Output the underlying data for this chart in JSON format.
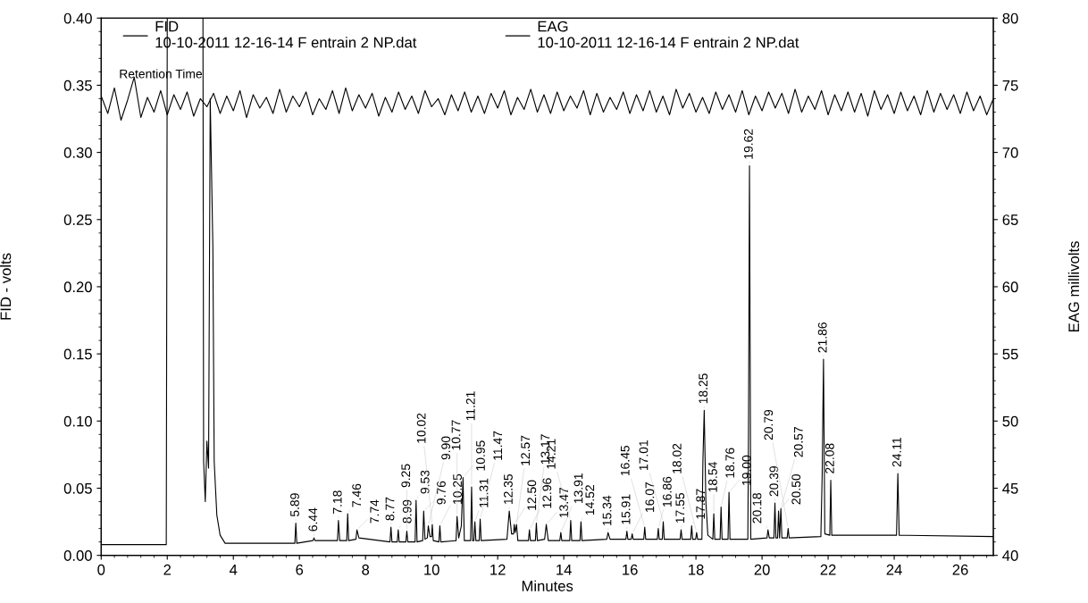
{
  "chart_data": {
    "type": "line",
    "xlabel": "Minutes",
    "ylabel": "FID - volts",
    "y2label": "EAG millivolts",
    "xlim": [
      0,
      27
    ],
    "xticks": [
      0,
      2,
      4,
      6,
      8,
      10,
      12,
      14,
      16,
      18,
      20,
      22,
      24,
      26
    ],
    "ylim": [
      0,
      0.4
    ],
    "yticks": [
      {
        "value": 0,
        "label": "0.00"
      },
      {
        "value": 0.05,
        "label": "0.05"
      },
      {
        "value": 0.1,
        "label": "0.10"
      },
      {
        "value": 0.15,
        "label": "0.15"
      },
      {
        "value": 0.2,
        "label": "0.20"
      },
      {
        "value": 0.25,
        "label": "0.25"
      },
      {
        "value": 0.3,
        "label": "0.30"
      },
      {
        "value": 0.35,
        "label": "0.35"
      },
      {
        "value": 0.4,
        "label": "0.40"
      }
    ],
    "y2lim": [
      40,
      80
    ],
    "y2ticks": [
      40,
      45,
      50,
      55,
      60,
      65,
      70,
      75,
      80
    ],
    "legend": "top left",
    "grid": false,
    "marker": "none",
    "line_style": "solid",
    "series": [
      {
        "name": "FID\n10-10-2011 12-16-14 F entrain 2 NP.dat",
        "color": "#000000",
        "x": [
          0,
          1.97,
          2.0,
          3.08,
          3.1,
          3.15,
          3.2,
          3.25,
          3.3,
          3.38,
          3.42,
          3.5,
          3.6,
          3.75,
          5.86,
          5.89,
          5.92,
          6.41,
          6.44,
          6.47,
          7.15,
          7.18,
          7.22,
          7.43,
          7.46,
          7.49,
          7.71,
          7.74,
          7.8,
          8.74,
          8.77,
          8.8,
          8.96,
          8.99,
          9.02,
          9.22,
          9.25,
          9.28,
          9.5,
          9.53,
          9.56,
          9.73,
          9.76,
          9.8,
          9.87,
          9.9,
          9.95,
          10.0,
          10.02,
          10.05,
          10.22,
          10.25,
          10.28,
          10.74,
          10.77,
          10.82,
          10.9,
          10.95,
          10.99,
          11.18,
          11.21,
          11.24,
          11.28,
          11.31,
          11.34,
          11.44,
          11.47,
          11.5,
          12.28,
          12.35,
          12.42,
          12.48,
          12.5,
          12.53,
          12.57,
          12.61,
          12.93,
          12.96,
          12.99,
          13.14,
          13.17,
          13.2,
          13.42,
          13.47,
          13.53,
          13.88,
          13.91,
          13.94,
          14.18,
          14.21,
          14.24,
          14.49,
          14.52,
          14.55,
          15.3,
          15.34,
          15.4,
          15.88,
          15.91,
          15.94,
          16.04,
          16.07,
          16.1,
          16.42,
          16.45,
          16.48,
          16.83,
          16.86,
          16.89,
          16.98,
          17.01,
          17.04,
          17.52,
          17.55,
          17.58,
          17.84,
          17.87,
          17.9,
          17.99,
          18.02,
          18.05,
          18.18,
          18.21,
          18.25,
          18.3,
          18.36,
          18.51,
          18.54,
          18.57,
          18.73,
          18.76,
          18.79,
          18.97,
          19.0,
          19.03,
          19.57,
          19.59,
          19.62,
          19.66,
          20.15,
          20.18,
          20.22,
          20.36,
          20.39,
          20.42,
          20.47,
          20.5,
          20.53,
          20.57,
          20.6,
          20.76,
          20.79,
          20.82,
          21.78,
          21.82,
          21.86,
          21.9,
          22.05,
          22.08,
          22.11,
          24.07,
          24.11,
          24.15,
          27.0
        ],
        "values": [
          0.008,
          0.008,
          0.4,
          0.4,
          0.07,
          0.04,
          0.085,
          0.065,
          0.34,
          0.23,
          0.07,
          0.03,
          0.015,
          0.009,
          0.009,
          0.024,
          0.009,
          0.011,
          0.013,
          0.011,
          0.011,
          0.026,
          0.011,
          0.011,
          0.031,
          0.011,
          0.012,
          0.019,
          0.013,
          0.01,
          0.021,
          0.01,
          0.01,
          0.019,
          0.01,
          0.01,
          0.018,
          0.01,
          0.01,
          0.041,
          0.01,
          0.011,
          0.033,
          0.012,
          0.013,
          0.022,
          0.014,
          0.014,
          0.023,
          0.011,
          0.01,
          0.022,
          0.01,
          0.011,
          0.029,
          0.013,
          0.022,
          0.058,
          0.011,
          0.011,
          0.051,
          0.011,
          0.011,
          0.025,
          0.011,
          0.011,
          0.027,
          0.011,
          0.012,
          0.033,
          0.016,
          0.016,
          0.023,
          0.017,
          0.023,
          0.011,
          0.011,
          0.019,
          0.011,
          0.011,
          0.024,
          0.011,
          0.012,
          0.023,
          0.011,
          0.011,
          0.017,
          0.011,
          0.011,
          0.026,
          0.011,
          0.011,
          0.025,
          0.011,
          0.012,
          0.017,
          0.012,
          0.012,
          0.018,
          0.012,
          0.012,
          0.016,
          0.012,
          0.012,
          0.021,
          0.012,
          0.012,
          0.02,
          0.012,
          0.012,
          0.025,
          0.012,
          0.012,
          0.019,
          0.012,
          0.012,
          0.022,
          0.012,
          0.012,
          0.017,
          0.012,
          0.012,
          0.07,
          0.108,
          0.04,
          0.015,
          0.012,
          0.031,
          0.012,
          0.012,
          0.036,
          0.012,
          0.012,
          0.047,
          0.012,
          0.012,
          0.09,
          0.29,
          0.012,
          0.013,
          0.019,
          0.013,
          0.013,
          0.039,
          0.013,
          0.013,
          0.033,
          0.013,
          0.035,
          0.013,
          0.013,
          0.02,
          0.013,
          0.014,
          0.06,
          0.146,
          0.016,
          0.015,
          0.056,
          0.015,
          0.015,
          0.061,
          0.015,
          0.014
        ]
      },
      {
        "name": "EAG\n10-10-2011 12-16-14 F entrain 2 NP.dat",
        "color": "#000000",
        "axis": "y2",
        "x": [
          0,
          0.2,
          0.4,
          0.6,
          0.8,
          1,
          1.2,
          1.4,
          1.6,
          1.8,
          2,
          2.2,
          2.4,
          2.6,
          2.8,
          3,
          3.2,
          3.4,
          3.6,
          3.8,
          4,
          4.2,
          4.4,
          4.6,
          4.8,
          5,
          5.2,
          5.4,
          5.6,
          5.8,
          6,
          6.2,
          6.4,
          6.6,
          6.8,
          7,
          7.2,
          7.4,
          7.6,
          7.8,
          8,
          8.2,
          8.4,
          8.6,
          8.8,
          9,
          9.2,
          9.4,
          9.6,
          9.8,
          10,
          10.2,
          10.4,
          10.6,
          10.8,
          11,
          11.2,
          11.4,
          11.6,
          11.8,
          12,
          12.2,
          12.4,
          12.6,
          12.8,
          13,
          13.2,
          13.4,
          13.6,
          13.8,
          14,
          14.2,
          14.4,
          14.6,
          14.8,
          15,
          15.2,
          15.4,
          15.6,
          15.8,
          16,
          16.2,
          16.4,
          16.6,
          16.8,
          17,
          17.2,
          17.4,
          17.6,
          17.8,
          18,
          18.2,
          18.4,
          18.6,
          18.8,
          19,
          19.2,
          19.4,
          19.6,
          19.8,
          20,
          20.2,
          20.4,
          20.6,
          20.8,
          21,
          21.2,
          21.4,
          21.6,
          21.8,
          22,
          22.2,
          22.4,
          22.6,
          22.8,
          23,
          23.2,
          23.4,
          23.6,
          23.8,
          24,
          24.2,
          24.4,
          24.6,
          24.8,
          25,
          25.2,
          25.4,
          25.6,
          25.8,
          26,
          26.2,
          26.4,
          26.6,
          26.8,
          27
        ],
        "values": [
          74.2,
          72.9,
          74.8,
          72.4,
          73.9,
          75.6,
          72.6,
          74.1,
          73.0,
          74.6,
          72.8,
          74.3,
          73.2,
          74.5,
          72.7,
          74.0,
          73.4,
          74.4,
          72.9,
          74.2,
          73.1,
          74.6,
          72.6,
          74.3,
          73.3,
          74.1,
          72.9,
          74.7,
          73.0,
          74.2,
          73.4,
          74.5,
          72.8,
          74.0,
          73.2,
          74.6,
          72.9,
          74.8,
          73.1,
          74.3,
          73.3,
          74.4,
          72.7,
          74.1,
          73.0,
          74.5,
          73.2,
          74.2,
          72.9,
          74.6,
          73.4,
          74.0,
          72.8,
          74.3,
          73.1,
          74.5,
          73.0,
          74.2,
          72.9,
          74.4,
          73.3,
          74.6,
          72.8,
          74.1,
          73.2,
          74.7,
          73.0,
          74.3,
          72.9,
          74.5,
          73.1,
          74.2,
          73.3,
          74.6,
          72.8,
          74.4,
          73.0,
          74.1,
          73.2,
          74.5,
          72.9,
          74.3,
          73.1,
          74.6,
          73.0,
          74.2,
          72.8,
          74.7,
          73.3,
          74.4,
          73.0,
          74.1,
          72.9,
          74.5,
          73.2,
          74.3,
          73.0,
          74.6,
          72.8,
          74.2,
          73.1,
          74.5,
          73.3,
          74.4,
          72.9,
          74.7,
          73.0,
          74.2,
          73.2,
          74.6,
          72.8,
          74.3,
          73.1,
          74.5,
          73.0,
          74.4,
          72.7,
          74.6,
          73.2,
          74.3,
          72.9,
          74.5,
          73.1,
          74.2,
          72.8,
          74.6,
          73.0,
          74.4,
          73.2,
          74.3,
          72.9,
          74.5,
          73.1,
          74.2,
          72.8,
          74.0
        ]
      }
    ],
    "annotations": [
      "Retention Time",
      {
        "text": "5.89",
        "x": 5.89,
        "y": 0.024
      },
      {
        "text": "6.44",
        "x": 6.44,
        "y": 0.013
      },
      {
        "text": "7.18",
        "x": 7.18,
        "y": 0.026
      },
      {
        "text": "7.46",
        "x": 7.46,
        "y": 0.031
      },
      {
        "text": "7.74",
        "x": 7.74,
        "y": 0.019
      },
      {
        "text": "8.77",
        "x": 8.77,
        "y": 0.021
      },
      {
        "text": "8.99",
        "x": 8.99,
        "y": 0.019
      },
      {
        "text": "9.25",
        "x": 9.25,
        "y": 0.018
      },
      {
        "text": "9.53",
        "x": 9.53,
        "y": 0.041
      },
      {
        "text": "9.76",
        "x": 9.76,
        "y": 0.033
      },
      {
        "text": "9.90",
        "x": 9.9,
        "y": 0.022
      },
      {
        "text": "10.02",
        "x": 10.02,
        "y": 0.023
      },
      {
        "text": "10.25",
        "x": 10.25,
        "y": 0.022
      },
      {
        "text": "10.77",
        "x": 10.77,
        "y": 0.029
      },
      {
        "text": "10.95",
        "x": 10.95,
        "y": 0.058
      },
      {
        "text": "11.21",
        "x": 11.21,
        "y": 0.051
      },
      {
        "text": "11.31",
        "x": 11.31,
        "y": 0.025
      },
      {
        "text": "11.47",
        "x": 11.47,
        "y": 0.027
      },
      {
        "text": "12.35",
        "x": 12.35,
        "y": 0.033
      },
      {
        "text": "12.50",
        "x": 12.5,
        "y": 0.023
      },
      {
        "text": "12.57",
        "x": 12.57,
        "y": 0.023
      },
      {
        "text": "12.96",
        "x": 12.96,
        "y": 0.019
      },
      {
        "text": "13.17",
        "x": 13.17,
        "y": 0.024
      },
      {
        "text": "13.47",
        "x": 13.47,
        "y": 0.023
      },
      {
        "text": "13.91",
        "x": 13.91,
        "y": 0.017
      },
      {
        "text": "14.21",
        "x": 14.21,
        "y": 0.026
      },
      {
        "text": "14.52",
        "x": 14.52,
        "y": 0.025
      },
      {
        "text": "15.34",
        "x": 15.34,
        "y": 0.017
      },
      {
        "text": "15.91",
        "x": 15.91,
        "y": 0.018
      },
      {
        "text": "16.07",
        "x": 16.07,
        "y": 0.016
      },
      {
        "text": "16.45",
        "x": 16.45,
        "y": 0.021
      },
      {
        "text": "16.86",
        "x": 16.86,
        "y": 0.02
      },
      {
        "text": "17.01",
        "x": 17.01,
        "y": 0.025
      },
      {
        "text": "17.55",
        "x": 17.55,
        "y": 0.019
      },
      {
        "text": "17.87",
        "x": 17.87,
        "y": 0.022
      },
      {
        "text": "18.02",
        "x": 18.02,
        "y": 0.017
      },
      {
        "text": "18.25",
        "x": 18.25,
        "y": 0.108
      },
      {
        "text": "18.54",
        "x": 18.54,
        "y": 0.031
      },
      {
        "text": "18.76",
        "x": 18.76,
        "y": 0.036
      },
      {
        "text": "19.00",
        "x": 19.0,
        "y": 0.047
      },
      {
        "text": "19.62",
        "x": 19.62,
        "y": 0.29
      },
      {
        "text": "20.18",
        "x": 20.18,
        "y": 0.019
      },
      {
        "text": "20.39",
        "x": 20.39,
        "y": 0.039
      },
      {
        "text": "20.50",
        "x": 20.5,
        "y": 0.033
      },
      {
        "text": "20.57",
        "x": 20.57,
        "y": 0.035
      },
      {
        "text": "20.79",
        "x": 20.79,
        "y": 0.02
      },
      {
        "text": "21.86",
        "x": 21.86,
        "y": 0.146
      },
      {
        "text": "22.08",
        "x": 22.08,
        "y": 0.056
      },
      {
        "text": "24.11",
        "x": 24.11,
        "y": 0.061
      }
    ]
  }
}
